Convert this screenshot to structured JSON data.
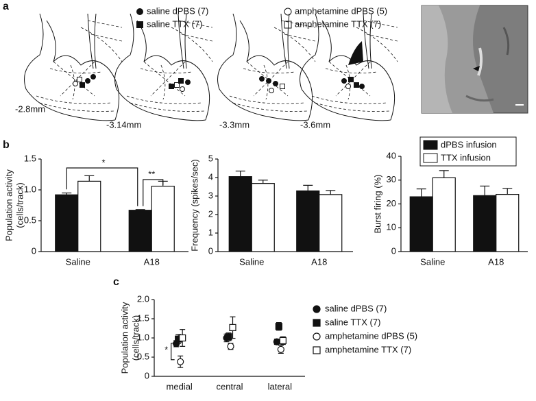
{
  "panel_labels": [
    "a",
    "b",
    "c"
  ],
  "panel_a": {
    "legend": [
      "saline dPBS (7)",
      "amphetamine dPBS (5)",
      "saline TTX (7)",
      "amphetamine TTX (7)"
    ],
    "sections": [
      "-2.8mm",
      "-3.14mm",
      "-3.3mm",
      "-3.6mm"
    ]
  },
  "chart_data": [
    {
      "type": "bar",
      "ylabel": [
        "Population activity",
        "(cells/track)"
      ],
      "categories": [
        "Saline",
        "A18"
      ],
      "series": [
        {
          "color": "#111111",
          "values": [
            0.92,
            0.67
          ],
          "errors": [
            0.03,
            0.01
          ]
        },
        {
          "color": "#ffffff",
          "values": [
            1.14,
            1.06
          ],
          "errors": [
            0.09,
            0.08
          ]
        }
      ],
      "ylim": [
        0,
        1.5
      ],
      "yticks": [
        0,
        0.5,
        {
          "value": 1,
          "label": "1.0"
        },
        1.5
      ],
      "annotations": [
        "*",
        "**"
      ]
    },
    {
      "type": "bar",
      "ylabel": [
        "Frequency (spikes/sec)"
      ],
      "categories": [
        "Saline",
        "A18"
      ],
      "series": [
        {
          "color": "#111111",
          "values": [
            4.05,
            3.28
          ],
          "errors": [
            0.3,
            0.3
          ]
        },
        {
          "color": "#ffffff",
          "values": [
            3.68,
            3.08
          ],
          "errors": [
            0.18,
            0.22
          ]
        }
      ],
      "ylim": [
        0,
        5
      ],
      "yticks": [
        0,
        1,
        2,
        3,
        4,
        5
      ]
    },
    {
      "type": "bar",
      "ylabel": [
        "Burst firing (%)"
      ],
      "categories": [
        "Saline",
        "A18"
      ],
      "series": [
        {
          "name": "dPBS infusion",
          "color": "#111111",
          "values": [
            23,
            23.5
          ],
          "errors": [
            3.3,
            4
          ]
        },
        {
          "name": "TTX infusion",
          "color": "#ffffff",
          "values": [
            31,
            24
          ],
          "errors": [
            3,
            2.5
          ]
        }
      ],
      "ylim": [
        0,
        40
      ],
      "yticks": [
        0,
        10,
        20,
        30,
        40
      ],
      "legend": "top-right"
    },
    {
      "type": "dot",
      "ylabel": [
        "Population activity",
        "(cells/track)"
      ],
      "categories": [
        "medial",
        "central",
        "lateral"
      ],
      "series": [
        {
          "name": "saline dPBS (7)",
          "marker": "circle",
          "filled": true,
          "color": "#111111",
          "values": [
            0.85,
            1.0,
            0.9
          ],
          "errors": [
            0.08,
            0.1,
            0.07
          ]
        },
        {
          "name": "saline TTX (7)",
          "marker": "square",
          "filled": true,
          "color": "#111111",
          "values": [
            0.97,
            1.03,
            1.3
          ],
          "errors": [
            0.12,
            0.1,
            0.1
          ]
        },
        {
          "name": "amphetamine dPBS (5)",
          "marker": "circle",
          "filled": false,
          "color": "#111111",
          "values": [
            0.38,
            0.78,
            0.7
          ],
          "errors": [
            0.15,
            0.08,
            0.1
          ]
        },
        {
          "name": "amphetamine TTX (7)",
          "marker": "square",
          "filled": false,
          "color": "#111111",
          "values": [
            1.0,
            1.27,
            0.93
          ],
          "errors": [
            0.22,
            0.28,
            0.1
          ]
        }
      ],
      "ylim": [
        0,
        2
      ],
      "yticks": [
        0,
        0.5,
        {
          "value": 1,
          "label": "1.0"
        },
        1.5,
        {
          "value": 2,
          "label": "2.0"
        }
      ],
      "legend": "right",
      "annotations": [
        "*"
      ]
    }
  ]
}
